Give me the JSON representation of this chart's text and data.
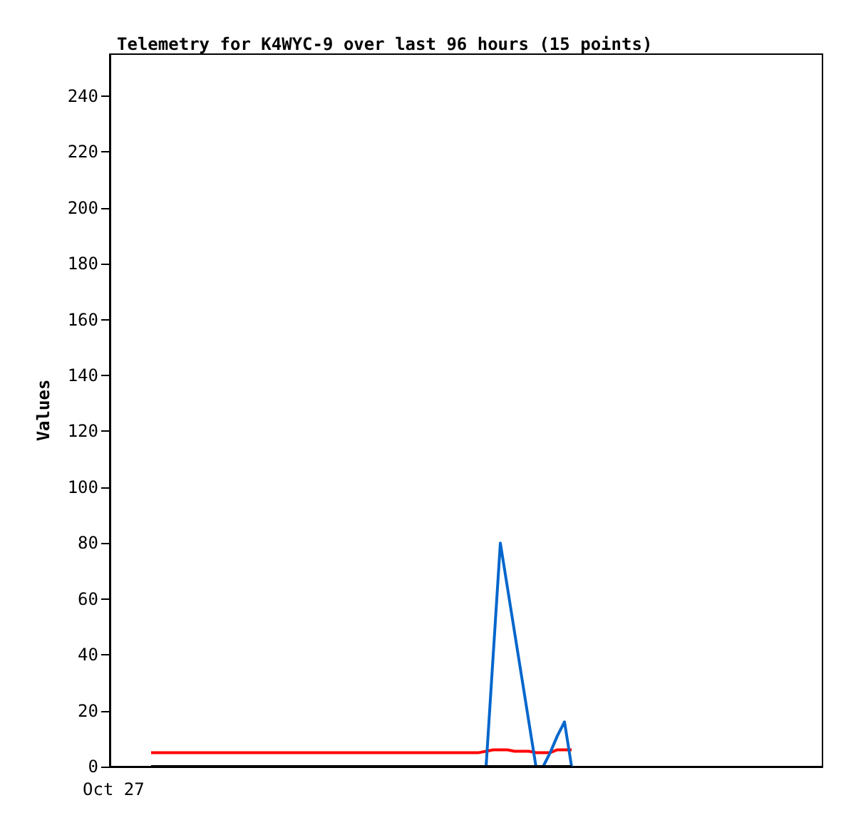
{
  "chart_data": {
    "type": "line",
    "title": "Telemetry for K4WYC-9 over last 96 hours (15 points)",
    "ylabel": "Values",
    "annotations": [
      "Oct 27"
    ],
    "categories": [
      null,
      null,
      null,
      null,
      null,
      null,
      null,
      null,
      null,
      null,
      null,
      null,
      null,
      null,
      null,
      null,
      null,
      null,
      null,
      null,
      null,
      null,
      null,
      null,
      null,
      null,
      null,
      null,
      null,
      null,
      null,
      null,
      null,
      null,
      null,
      null,
      null,
      null,
      null,
      null,
      null,
      null,
      null,
      null,
      null,
      null,
      null,
      null,
      null,
      null,
      null,
      null,
      null,
      null,
      null,
      null,
      null,
      null,
      null,
      null
    ],
    "ylim": [
      0,
      255
    ],
    "yticks": [
      0,
      20,
      40,
      60,
      80,
      100,
      120,
      140,
      160,
      180,
      200,
      220,
      240
    ],
    "grid": false,
    "marker": "none",
    "line_style": "solid",
    "series": [
      {
        "color": "#ff0000",
        "values": [
          5,
          5,
          5,
          5,
          5,
          5,
          5,
          5,
          5,
          5,
          5,
          5,
          5,
          5,
          5,
          5,
          5,
          5,
          5,
          5,
          5,
          5,
          5,
          5,
          5,
          5,
          5,
          5,
          5,
          5,
          5,
          5,
          5,
          5,
          5,
          5,
          5,
          5,
          5,
          5,
          5,
          5,
          5,
          5,
          5,
          5,
          5,
          5.5,
          6,
          6,
          6,
          5.5,
          5.5,
          5.5,
          5,
          5,
          5,
          6,
          6,
          6
        ]
      },
      {
        "color": "#0066cc",
        "values": [
          null,
          null,
          null,
          null,
          null,
          null,
          null,
          null,
          null,
          null,
          null,
          null,
          null,
          null,
          null,
          null,
          null,
          null,
          null,
          null,
          null,
          null,
          null,
          null,
          null,
          null,
          null,
          null,
          null,
          null,
          null,
          null,
          null,
          null,
          null,
          null,
          null,
          null,
          null,
          null,
          null,
          null,
          null,
          null,
          null,
          null,
          null,
          0,
          40,
          80,
          64,
          48,
          32,
          16,
          0,
          0,
          5,
          11,
          16,
          0
        ]
      },
      {
        "color": "#000000",
        "values": [
          0,
          0,
          0,
          0,
          0,
          0,
          0,
          0,
          0,
          0,
          0,
          0,
          0,
          0,
          0,
          0,
          0,
          0,
          0,
          0,
          0,
          0,
          0,
          0,
          0,
          0,
          0,
          0,
          0,
          0,
          0,
          0,
          0,
          0,
          0,
          0,
          0,
          0,
          0,
          0,
          0,
          0,
          0,
          0,
          0,
          0,
          0,
          0,
          0,
          0,
          0,
          0,
          0,
          0,
          0,
          0,
          0,
          0,
          0,
          0
        ]
      }
    ]
  }
}
